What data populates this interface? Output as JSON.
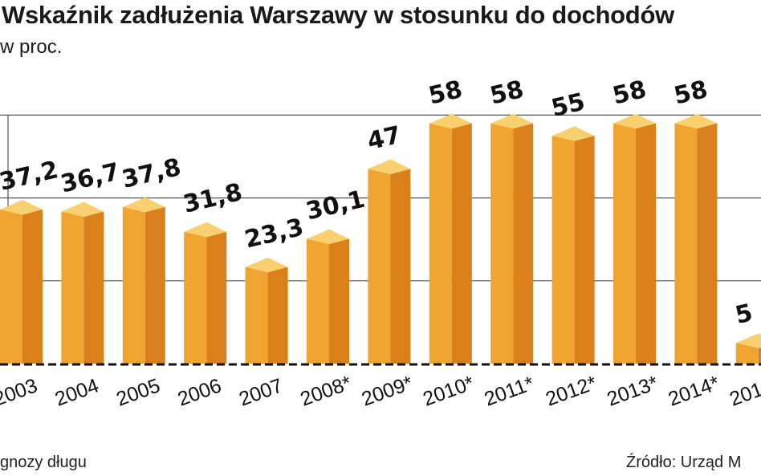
{
  "chart_data": {
    "type": "bar",
    "title": "Wskaźnik zadłużenia Warszawy w stosunku do dochodów",
    "subtitle": "w proc.",
    "categories": [
      "2003",
      "2004",
      "2005",
      "2006",
      "2007",
      "2008*",
      "2009*",
      "2010*",
      "2011*",
      "2012*",
      "2013*",
      "2014*",
      "201"
    ],
    "series": [
      {
        "values": [
          37.2,
          36.7,
          37.8,
          31.8,
          23.3,
          30.1,
          47,
          58,
          58,
          55,
          58,
          58,
          5
        ],
        "value_labels": [
          "37,2",
          "36,7",
          "37,8",
          "31,8",
          "23,3",
          "30,1",
          "47",
          "58",
          "58",
          "55",
          "58",
          "58",
          "5"
        ]
      }
    ],
    "ylim": [
      0,
      60
    ],
    "y_gridlines": [
      20,
      40,
      60
    ],
    "grid": true,
    "footnote": "gnozy długu",
    "source": "Źródło: Urząd M",
    "colors": {
      "bar_front": "#efa42f",
      "bar_side": "#d9801c",
      "bar_top": "#f9d070",
      "grid": "#555555",
      "baseline": "#111111"
    }
  }
}
